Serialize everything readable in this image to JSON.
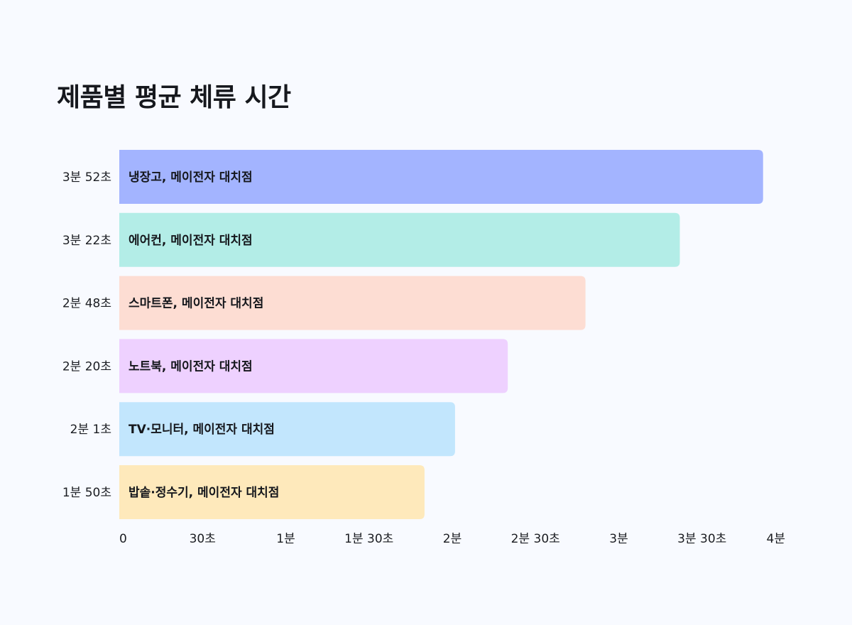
{
  "title": "제품별 평균 체류 시간",
  "colors": {
    "background": "#f8faff",
    "text": "#1b1d22"
  },
  "chart_data": {
    "type": "bar",
    "orientation": "horizontal",
    "title": "제품별 평균 체류 시간",
    "xlabel": "",
    "ylabel": "",
    "unit": "seconds",
    "xlim": [
      0,
      240
    ],
    "x_ticks": [
      {
        "value": 0,
        "label": "0"
      },
      {
        "value": 30,
        "label": "30초"
      },
      {
        "value": 60,
        "label": "1분"
      },
      {
        "value": 90,
        "label": "1분 30초"
      },
      {
        "value": 120,
        "label": "2분"
      },
      {
        "value": 150,
        "label": "2분 30초"
      },
      {
        "value": 180,
        "label": "3분"
      },
      {
        "value": 210,
        "label": "3분 30초"
      },
      {
        "value": 240,
        "label": "4분"
      }
    ],
    "grid": false,
    "categories": [
      "냉장고, 메이전자 대치점",
      "에어컨, 메이전자 대치점",
      "스마트폰, 메이전자 대치점",
      "노트북, 메이전자 대치점",
      "TV·모니터, 메이전자 대치점",
      "밥솥·정수기, 메이전자 대치점"
    ],
    "values": [
      232,
      202,
      168,
      140,
      121,
      110
    ],
    "value_labels": [
      "3분 52초",
      "3분 22초",
      "2분 48초",
      "2분 20초",
      "2분 1초",
      "1분 50초"
    ],
    "bar_colors": [
      "#a3b4ff",
      "#b3ede7",
      "#fdddd3",
      "#eed1ff",
      "#c2e6fd",
      "#fee9bb"
    ]
  }
}
